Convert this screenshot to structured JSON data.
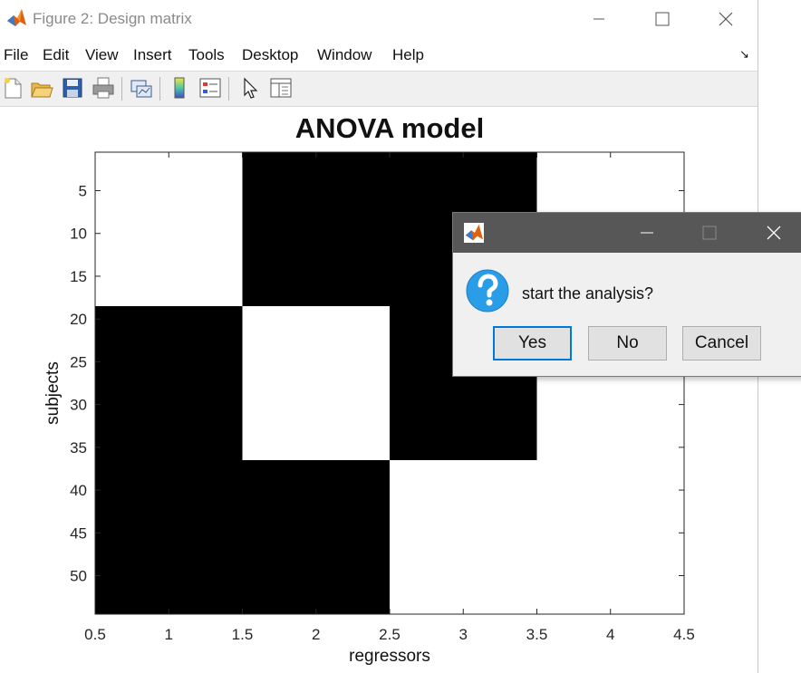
{
  "window": {
    "title": "Figure 2: Design matrix",
    "icon": "matlab-logo-icon",
    "controls": [
      "minimize-icon",
      "maximize-icon",
      "close-icon"
    ]
  },
  "menubar": {
    "items": [
      "File",
      "Edit",
      "View",
      "Insert",
      "Tools",
      "Desktop",
      "Window",
      "Help"
    ],
    "dock_icon": "dock-arrow-icon",
    "dock_glyph": "↘"
  },
  "toolbar": {
    "icons": [
      "new-figure-icon",
      "open-file-icon",
      "save-icon",
      "print-icon",
      "link-plot-icon",
      "colorbar-icon",
      "legend-icon",
      "edit-plot-arrow-icon",
      "property-inspector-icon"
    ]
  },
  "chart_data": {
    "type": "heatmap",
    "title": "ANOVA model",
    "xlabel": "regressors",
    "ylabel": "subjects",
    "xlim": [
      0.5,
      4.5
    ],
    "ylim": [
      0.5,
      54.5
    ],
    "y_reversed": true,
    "xticks": [
      "0.5",
      "1",
      "1.5",
      "2",
      "2.5",
      "3",
      "3.5",
      "4",
      "4.5"
    ],
    "yticks": [
      "5",
      "10",
      "15",
      "20",
      "25",
      "30",
      "35",
      "40",
      "45",
      "50"
    ],
    "colors": {
      "0": "#ffffff",
      "1": "#000000"
    },
    "matrix_blocks": [
      {
        "rows": [
          1,
          18
        ],
        "values": [
          0,
          1,
          1,
          0
        ]
      },
      {
        "rows": [
          19,
          36
        ],
        "values": [
          1,
          0,
          1,
          0
        ]
      },
      {
        "rows": [
          37,
          54
        ],
        "values": [
          1,
          1,
          0,
          0
        ]
      }
    ]
  },
  "dialog": {
    "icon": "matlab-logo-icon",
    "question_icon": "question-icon",
    "message": "start the analysis?",
    "buttons": {
      "yes": "Yes",
      "no": "No",
      "cancel": "Cancel"
    },
    "default_button": "Yes"
  },
  "colors": {
    "dialog_titlebar": "#575757",
    "dialog_bg": "#f0f0f0",
    "default_button_border": "#0078d7",
    "question_icon": "#2a9de8"
  }
}
